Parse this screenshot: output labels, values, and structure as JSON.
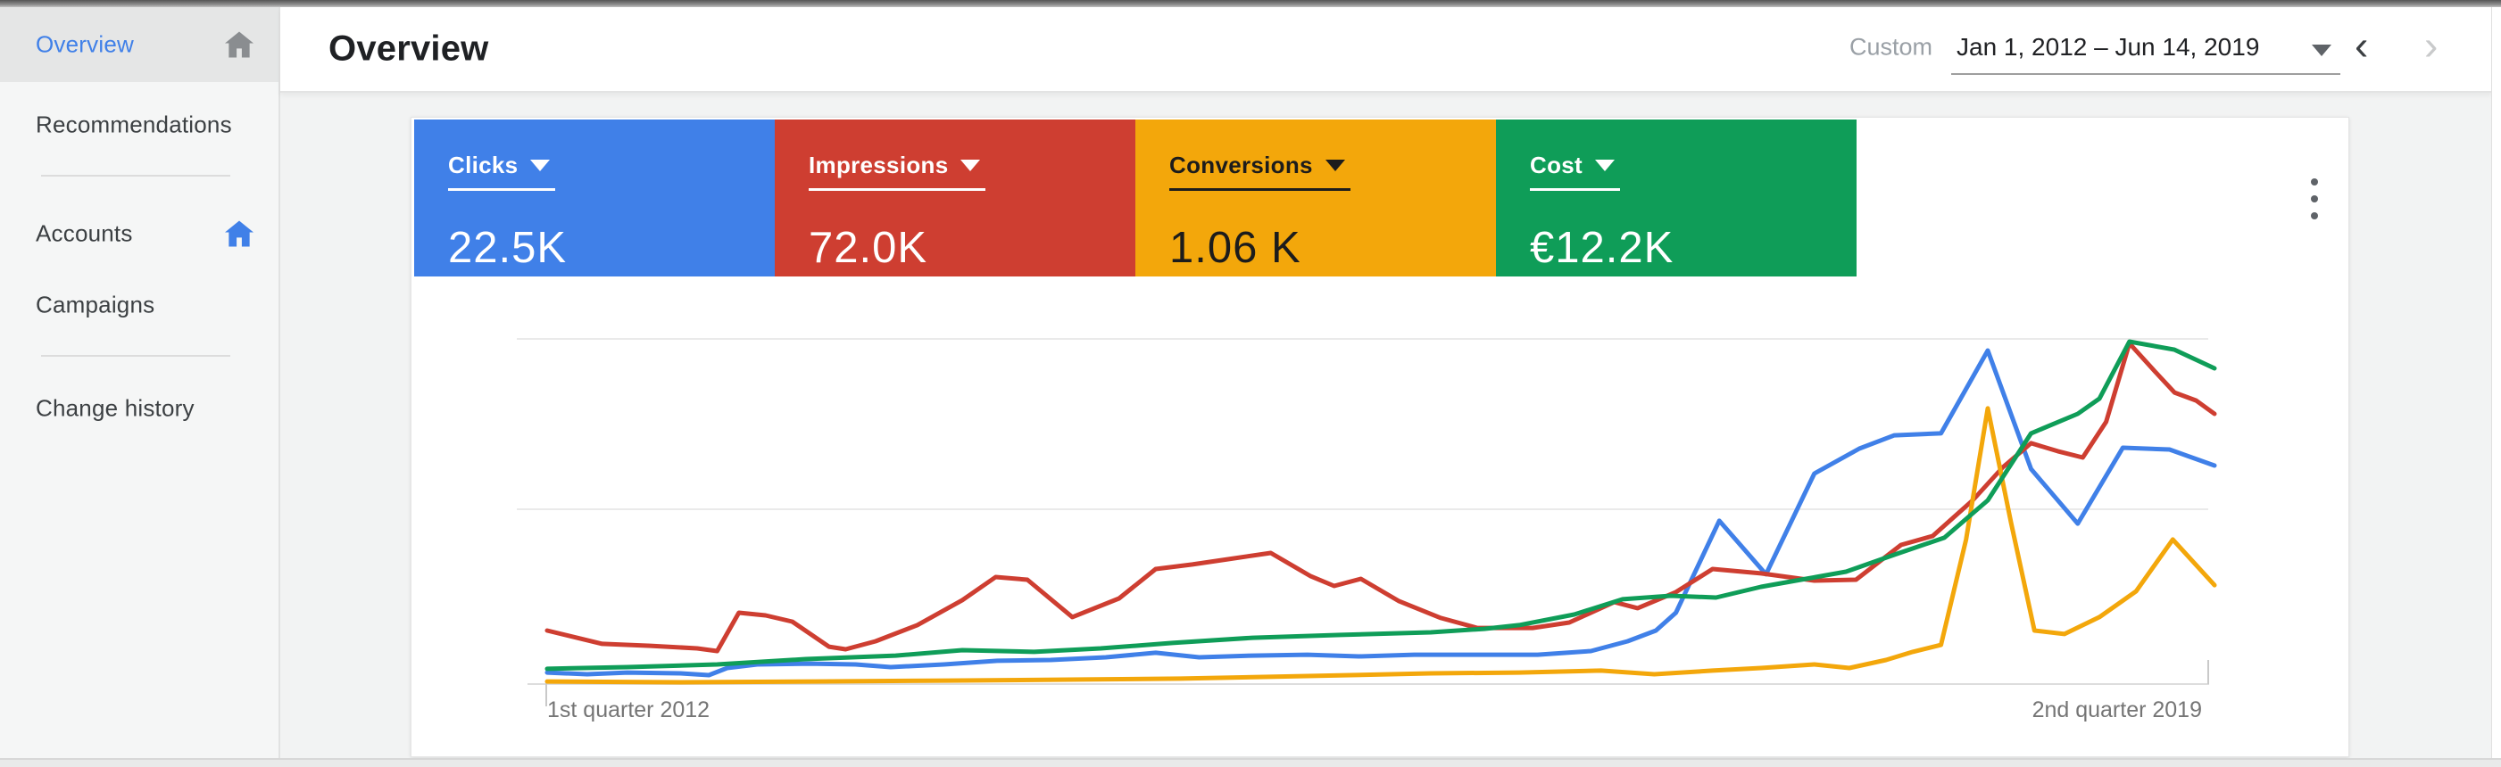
{
  "sidebar": {
    "items": [
      {
        "label": "Overview",
        "selected": true,
        "trailing_icon": "home-icon"
      },
      {
        "label": "Recommendations",
        "selected": false
      },
      {
        "label": "Accounts",
        "selected": false,
        "trailing_icon": "home-icon"
      },
      {
        "label": "Campaigns",
        "selected": false
      },
      {
        "label": "Change history",
        "selected": false
      }
    ]
  },
  "header": {
    "title": "Overview",
    "date_range_type": "Custom",
    "date_range": "Jan 1, 2012 – Jun 14, 2019",
    "dropdown_icon": "caret-down",
    "prev_icon": "‹",
    "next_icon": "›"
  },
  "scorecards": [
    {
      "metric": "Clicks",
      "value": "22.5K",
      "bg": "#4080E8",
      "fg": "#FFFFFF"
    },
    {
      "metric": "Impressions",
      "value": "72.0K",
      "bg": "#CE3E31",
      "fg": "#FFFFFF"
    },
    {
      "metric": "Conversions",
      "value": "1.06 K",
      "bg": "#F3A70B",
      "fg": "#1C1C1C"
    },
    {
      "metric": "Cost",
      "value": "€12.2K",
      "bg": "#0F9D58",
      "fg": "#FFFFFF"
    }
  ],
  "more_options_icon": "more-vert-icon",
  "chart_data": {
    "type": "line",
    "title": "",
    "xlabel": "",
    "ylabel": "",
    "x_axis": {
      "start_label": "1st quarter 2012",
      "end_label": "2nd quarter 2019"
    },
    "y_axis": {
      "tick_labels": "none",
      "gridline_units": [
        1,
        2
      ],
      "baseline_unit": 0
    },
    "legend_position": "scorecards-above",
    "grid": true,
    "note": "values are relative units: 0 = baseline, 1 = middle gridline, 2 = top gridline; x is fraction of timeline Q1-2012 to Q2-2019",
    "series": [
      {
        "name": "Clicks",
        "color": "#4080E8",
        "points": [
          [
            0,
            0.066
          ],
          [
            0.024,
            0.056
          ],
          [
            0.048,
            0.066
          ],
          [
            0.08,
            0.061
          ],
          [
            0.097,
            0.051
          ],
          [
            0.108,
            0.092
          ],
          [
            0.126,
            0.112
          ],
          [
            0.158,
            0.117
          ],
          [
            0.185,
            0.112
          ],
          [
            0.206,
            0.097
          ],
          [
            0.238,
            0.112
          ],
          [
            0.27,
            0.133
          ],
          [
            0.302,
            0.138
          ],
          [
            0.335,
            0.153
          ],
          [
            0.365,
            0.179
          ],
          [
            0.391,
            0.153
          ],
          [
            0.423,
            0.163
          ],
          [
            0.456,
            0.168
          ],
          [
            0.487,
            0.158
          ],
          [
            0.52,
            0.168
          ],
          [
            0.557,
            0.168
          ],
          [
            0.594,
            0.168
          ],
          [
            0.626,
            0.189
          ],
          [
            0.648,
            0.245
          ],
          [
            0.665,
            0.306
          ],
          [
            0.677,
            0.408
          ],
          [
            0.703,
            0.934
          ],
          [
            0.731,
            0.628
          ],
          [
            0.76,
            1.204
          ],
          [
            0.787,
            1.347
          ],
          [
            0.808,
            1.423
          ],
          [
            0.836,
            1.434
          ],
          [
            0.864,
            1.908
          ],
          [
            0.89,
            1.23
          ],
          [
            0.918,
            0.918
          ],
          [
            0.945,
            1.352
          ],
          [
            0.973,
            1.342
          ],
          [
            1,
            1.25
          ]
        ]
      },
      {
        "name": "Impressions",
        "color": "#CE3E31",
        "points": [
          [
            0,
            0.306
          ],
          [
            0.033,
            0.23
          ],
          [
            0.062,
            0.219
          ],
          [
            0.09,
            0.204
          ],
          [
            0.102,
            0.189
          ],
          [
            0.115,
            0.408
          ],
          [
            0.131,
            0.393
          ],
          [
            0.147,
            0.357
          ],
          [
            0.169,
            0.214
          ],
          [
            0.179,
            0.199
          ],
          [
            0.197,
            0.245
          ],
          [
            0.222,
            0.337
          ],
          [
            0.249,
            0.48
          ],
          [
            0.269,
            0.612
          ],
          [
            0.288,
            0.597
          ],
          [
            0.315,
            0.383
          ],
          [
            0.343,
            0.49
          ],
          [
            0.365,
            0.658
          ],
          [
            0.387,
            0.684
          ],
          [
            0.408,
            0.714
          ],
          [
            0.434,
            0.75
          ],
          [
            0.458,
            0.617
          ],
          [
            0.472,
            0.561
          ],
          [
            0.488,
            0.602
          ],
          [
            0.511,
            0.474
          ],
          [
            0.536,
            0.378
          ],
          [
            0.558,
            0.321
          ],
          [
            0.591,
            0.321
          ],
          [
            0.613,
            0.352
          ],
          [
            0.64,
            0.469
          ],
          [
            0.654,
            0.434
          ],
          [
            0.677,
            0.526
          ],
          [
            0.699,
            0.658
          ],
          [
            0.728,
            0.633
          ],
          [
            0.76,
            0.592
          ],
          [
            0.785,
            0.597
          ],
          [
            0.812,
            0.796
          ],
          [
            0.831,
            0.847
          ],
          [
            0.855,
            1.051
          ],
          [
            0.873,
            1.24
          ],
          [
            0.89,
            1.378
          ],
          [
            0.906,
            1.332
          ],
          [
            0.921,
            1.296
          ],
          [
            0.935,
            1.5
          ],
          [
            0.949,
            1.949
          ],
          [
            0.964,
            1.791
          ],
          [
            0.976,
            1.668
          ],
          [
            0.989,
            1.622
          ],
          [
            1,
            1.546
          ]
        ]
      },
      {
        "name": "Conversions",
        "color": "#F3A70B",
        "points": [
          [
            0,
            0.015
          ],
          [
            0.08,
            0.01
          ],
          [
            0.161,
            0.015
          ],
          [
            0.241,
            0.02
          ],
          [
            0.321,
            0.026
          ],
          [
            0.38,
            0.031
          ],
          [
            0.456,
            0.046
          ],
          [
            0.53,
            0.061
          ],
          [
            0.583,
            0.066
          ],
          [
            0.632,
            0.077
          ],
          [
            0.664,
            0.056
          ],
          [
            0.699,
            0.077
          ],
          [
            0.728,
            0.092
          ],
          [
            0.76,
            0.112
          ],
          [
            0.781,
            0.092
          ],
          [
            0.803,
            0.138
          ],
          [
            0.819,
            0.184
          ],
          [
            0.836,
            0.224
          ],
          [
            0.851,
            0.827
          ],
          [
            0.864,
            1.577
          ],
          [
            0.878,
            0.923
          ],
          [
            0.892,
            0.306
          ],
          [
            0.91,
            0.286
          ],
          [
            0.931,
            0.383
          ],
          [
            0.953,
            0.531
          ],
          [
            0.975,
            0.827
          ],
          [
            1,
            0.566
          ]
        ]
      },
      {
        "name": "Cost",
        "color": "#0F9D58",
        "points": [
          [
            0,
            0.087
          ],
          [
            0.048,
            0.097
          ],
          [
            0.102,
            0.112
          ],
          [
            0.155,
            0.143
          ],
          [
            0.209,
            0.163
          ],
          [
            0.249,
            0.194
          ],
          [
            0.292,
            0.184
          ],
          [
            0.332,
            0.204
          ],
          [
            0.375,
            0.235
          ],
          [
            0.423,
            0.265
          ],
          [
            0.476,
            0.281
          ],
          [
            0.53,
            0.296
          ],
          [
            0.562,
            0.316
          ],
          [
            0.583,
            0.337
          ],
          [
            0.616,
            0.398
          ],
          [
            0.645,
            0.485
          ],
          [
            0.674,
            0.505
          ],
          [
            0.701,
            0.495
          ],
          [
            0.728,
            0.556
          ],
          [
            0.752,
            0.597
          ],
          [
            0.779,
            0.643
          ],
          [
            0.808,
            0.74
          ],
          [
            0.838,
            0.837
          ],
          [
            0.864,
            1.051
          ],
          [
            0.89,
            1.434
          ],
          [
            0.918,
            1.546
          ],
          [
            0.931,
            1.633
          ],
          [
            0.949,
            1.959
          ],
          [
            0.976,
            1.913
          ],
          [
            1,
            1.806
          ]
        ]
      }
    ]
  }
}
